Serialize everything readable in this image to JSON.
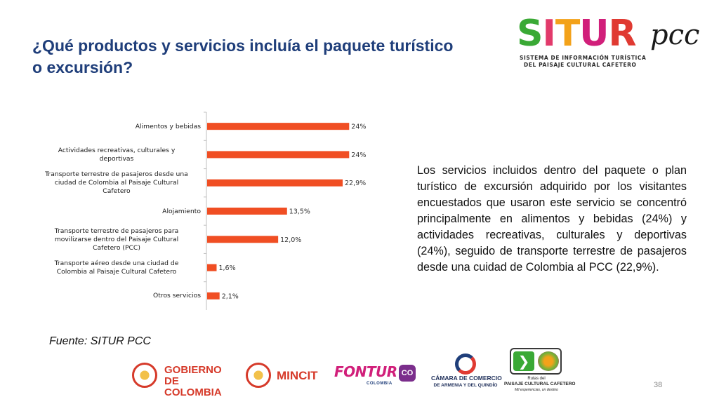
{
  "title": "¿Qué productos y servicios incluía el paquete turístico o excursión?",
  "logo": {
    "letters": [
      {
        "char": "S",
        "color": "#3aa935"
      },
      {
        "char": "I",
        "color": "#e23a6b"
      },
      {
        "char": "T",
        "color": "#f3a21a"
      },
      {
        "char": "U",
        "color": "#d11f7a"
      },
      {
        "char": "R",
        "color": "#e03a32"
      }
    ],
    "suffix": "pcc",
    "line1": "SISTEMA DE INFORMACIÓN TURÍSTICA",
    "line2": "DEL PAISAJE CULTURAL CAFETERO"
  },
  "chart_data": {
    "type": "bar",
    "orientation": "horizontal",
    "categories": [
      [
        "Alimentos y bebidas"
      ],
      [
        "Actividades recreativas, culturales y",
        "deportivas"
      ],
      [
        "Transporte terrestre de pasajeros desde una",
        "ciudad de Colombia al Paisaje Cultural",
        "Cafetero"
      ],
      [
        "Alojamiento"
      ],
      [
        "Transporte terrestre de pasajeros para",
        "movilizarse dentro del Paisaje Cultural",
        "Cafetero (PCC)"
      ],
      [
        "Transporte aéreo desde una ciudad de",
        "Colombia al Paisaje Cultural Cafetero"
      ],
      [
        "Otros servicios"
      ]
    ],
    "values": [
      24,
      24,
      22.9,
      13.5,
      12.0,
      1.6,
      2.1
    ],
    "data_labels": [
      "24%",
      "24%",
      "22,9%",
      "13,5%",
      "12,0%",
      "1,6%",
      "2,1%"
    ],
    "xlim": [
      0,
      28
    ],
    "bar_color": "#f04e23",
    "grid": false
  },
  "description": "Los servicios incluidos dentro del paquete o plan turístico de excursión adquirido por los visitantes encuestados que usaron este servicio se concentró principalmente en alimentos y bebidas (24%) y actividades recreativas, culturales y deportivas (24%), seguido de transporte terrestre de pasajeros desde una cuidad de Colombia al PCC (22,9%).",
  "source": "Fuente: SITUR PCC",
  "footer": {
    "gobierno_line1": "GOBIERNO",
    "gobierno_line2": "DE COLOMBIA",
    "mincit": "MINCIT",
    "fontur": "FONTUR",
    "fontur_sub": "COLOMBIA",
    "co_badge": "CO",
    "camara_line1": "CÁMARA DE COMERCIO",
    "camara_line2": "DE ARMENIA Y DEL QUINDÍO",
    "rutas_line1": "Rutas del",
    "rutas_line2": "PAISAJE CULTURAL CAFETERO",
    "rutas_line3": "Mil experiencias, un destino",
    "accent_red": "#d63a2a"
  },
  "page_number": "38"
}
